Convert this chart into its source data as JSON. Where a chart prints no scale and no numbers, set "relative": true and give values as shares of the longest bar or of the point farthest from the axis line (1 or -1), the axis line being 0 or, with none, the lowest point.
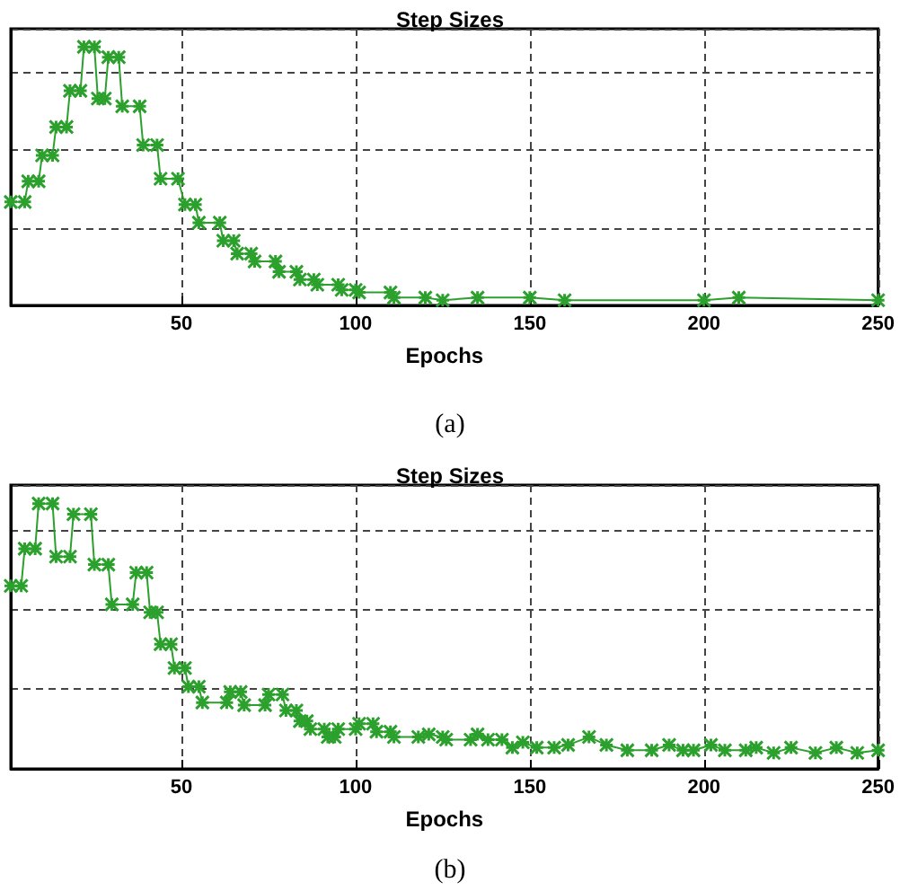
{
  "chart_data": [
    {
      "type": "line",
      "title": "Step Sizes",
      "xlabel": "Epochs",
      "annotations": [
        "(a)"
      ],
      "relative": true,
      "grid": true,
      "marker": "cross",
      "line_style": "solid",
      "xlim": [
        1,
        250
      ],
      "xticks": [
        50,
        100,
        150,
        200,
        250
      ],
      "series": [
        {
          "color": "#2ca02c",
          "x": [
            1,
            5,
            6,
            9,
            10,
            13,
            14,
            17,
            18,
            21,
            22,
            25,
            26,
            28,
            29,
            32,
            33,
            38,
            39,
            43,
            44,
            49,
            51,
            54,
            55,
            61,
            62,
            65,
            66,
            70,
            71,
            77,
            78,
            83,
            84,
            88,
            89,
            95,
            96,
            100,
            101,
            110,
            111,
            120,
            125,
            135,
            150,
            160,
            200,
            210,
            250
          ],
          "values": [
            0.4,
            0.4,
            0.48,
            0.48,
            0.58,
            0.58,
            0.69,
            0.69,
            0.83,
            0.83,
            1,
            1,
            0.8,
            0.8,
            0.96,
            0.96,
            0.77,
            0.77,
            0.62,
            0.62,
            0.49,
            0.49,
            0.39,
            0.39,
            0.32,
            0.32,
            0.25,
            0.25,
            0.2,
            0.2,
            0.17,
            0.17,
            0.13,
            0.13,
            0.1,
            0.1,
            0.08,
            0.08,
            0.06,
            0.06,
            0.05,
            0.05,
            0.03,
            0.03,
            0.02,
            0.03,
            0.03,
            0.02,
            0.02,
            0.03,
            0.02
          ]
        }
      ]
    },
    {
      "type": "line",
      "title": "Step Sizes",
      "xlabel": "Epochs",
      "annotations": [
        "(b)"
      ],
      "relative": true,
      "grid": true,
      "marker": "cross",
      "line_style": "solid",
      "xlim": [
        1,
        250
      ],
      "xticks": [
        50,
        100,
        150,
        200,
        250
      ],
      "series": [
        {
          "color": "#2ca02c",
          "x": [
            1,
            4,
            5,
            8,
            9,
            13,
            14,
            18,
            19,
            24,
            25,
            29,
            30,
            36,
            37,
            40,
            41,
            43,
            44,
            47,
            48,
            51,
            52,
            55,
            56,
            63,
            64,
            67,
            68,
            74,
            75,
            79,
            80,
            83,
            84,
            86,
            87,
            91,
            92,
            94,
            95,
            100,
            101,
            105,
            106,
            110,
            111,
            118,
            121,
            125,
            126,
            133,
            135,
            138,
            142,
            145,
            148,
            152,
            157,
            161,
            167,
            172,
            178,
            185,
            190,
            194,
            197,
            202,
            206,
            212,
            215,
            220,
            225,
            232,
            238,
            244,
            250
          ],
          "values": [
            0.69,
            0.69,
            0.83,
            0.83,
            1,
            1,
            0.8,
            0.8,
            0.96,
            0.96,
            0.77,
            0.77,
            0.62,
            0.62,
            0.74,
            0.74,
            0.59,
            0.59,
            0.47,
            0.47,
            0.38,
            0.38,
            0.31,
            0.31,
            0.25,
            0.25,
            0.29,
            0.29,
            0.24,
            0.24,
            0.28,
            0.28,
            0.22,
            0.22,
            0.18,
            0.18,
            0.15,
            0.15,
            0.12,
            0.12,
            0.15,
            0.15,
            0.17,
            0.17,
            0.14,
            0.14,
            0.12,
            0.12,
            0.13,
            0.12,
            0.11,
            0.11,
            0.13,
            0.11,
            0.11,
            0.08,
            0.1,
            0.08,
            0.08,
            0.09,
            0.12,
            0.09,
            0.07,
            0.07,
            0.09,
            0.07,
            0.07,
            0.09,
            0.07,
            0.07,
            0.08,
            0.06,
            0.08,
            0.06,
            0.08,
            0.06,
            0.07
          ]
        }
      ]
    }
  ]
}
